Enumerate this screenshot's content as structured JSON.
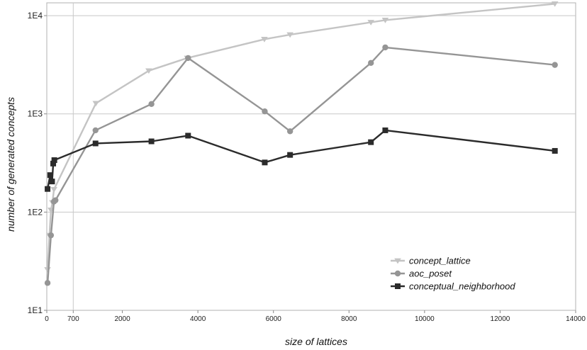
{
  "chart_data": {
    "type": "line",
    "title": "",
    "xlabel": "size of lattices",
    "ylabel": "number of generated concepts",
    "xlim": [
      0,
      14000
    ],
    "ylim": [
      10,
      13500
    ],
    "yscale": "log",
    "grid": true,
    "legend_position": "bottom-right",
    "x_ticks": [
      {
        "value": 0,
        "label": "0"
      },
      {
        "value": 700,
        "label": "700"
      },
      {
        "value": 2000,
        "label": "2000"
      },
      {
        "value": 4000,
        "label": "4000"
      },
      {
        "value": 6000,
        "label": "6000"
      },
      {
        "value": 8000,
        "label": "8000"
      },
      {
        "value": 10000,
        "label": "10000"
      },
      {
        "value": 12000,
        "label": "12000"
      },
      {
        "value": 14000,
        "label": "14000"
      }
    ],
    "y_ticks": [
      {
        "value": 10,
        "label": "1E1"
      },
      {
        "value": 100,
        "label": "1E2"
      },
      {
        "value": 1000,
        "label": "1E3"
      },
      {
        "value": 10000,
        "label": "1E4"
      }
    ],
    "series": [
      {
        "name": "concept_lattice",
        "color": "#c4c4c4",
        "marker": "triangle-down",
        "points": [
          [
            20,
            26
          ],
          [
            70,
            58
          ],
          [
            110,
            105
          ],
          [
            150,
            125
          ],
          [
            190,
            170
          ],
          [
            1300,
            1280
          ],
          [
            2700,
            2750
          ],
          [
            3720,
            3700
          ],
          [
            5760,
            5750
          ],
          [
            6440,
            6400
          ],
          [
            8580,
            8550
          ],
          [
            8960,
            9000
          ],
          [
            13450,
            13200
          ]
        ]
      },
      {
        "name": "aoc_poset",
        "color": "#959595",
        "marker": "circle",
        "points": [
          [
            20,
            19
          ],
          [
            110,
            58
          ],
          [
            190,
            128
          ],
          [
            230,
            132
          ],
          [
            1290,
            680
          ],
          [
            2770,
            1260
          ],
          [
            3740,
            3700
          ],
          [
            5770,
            1060
          ],
          [
            6440,
            665
          ],
          [
            8580,
            3300
          ],
          [
            8960,
            4750
          ],
          [
            13450,
            3150
          ]
        ]
      },
      {
        "name": "conceptual_neighborhood",
        "color": "#2b2b2b",
        "marker": "square",
        "points": [
          [
            20,
            172
          ],
          [
            90,
            238
          ],
          [
            140,
            205
          ],
          [
            170,
            312
          ],
          [
            200,
            338
          ],
          [
            1290,
            500
          ],
          [
            2770,
            525
          ],
          [
            3740,
            600
          ],
          [
            5770,
            320
          ],
          [
            6440,
            382
          ],
          [
            8580,
            515
          ],
          [
            8960,
            680
          ],
          [
            13450,
            420
          ]
        ]
      }
    ]
  }
}
